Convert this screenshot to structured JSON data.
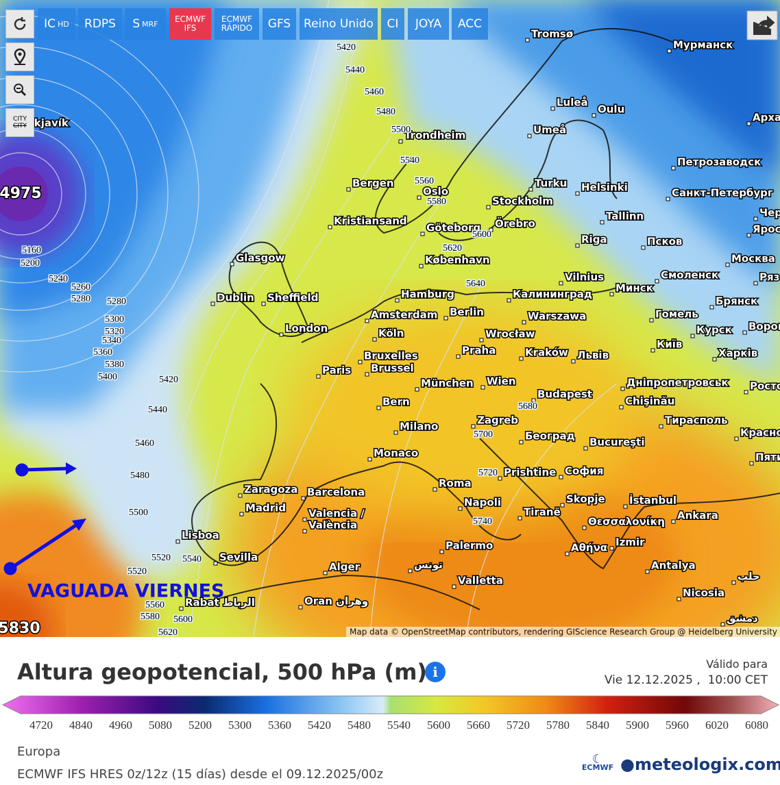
{
  "toolbar": {
    "models": [
      [
        "IC",
        "HD"
      ],
      [
        "RDPS"
      ],
      [
        "S",
        "MRF"
      ],
      [
        "ECMWF",
        "IFS"
      ],
      [
        "ECMWF",
        "RÁPIDO"
      ],
      [
        "GFS"
      ],
      [
        "Reino Unido"
      ],
      [
        "CI"
      ],
      [
        "JOYA"
      ],
      [
        "ACC"
      ]
    ],
    "city_toggle": [
      "CITY",
      "CITY"
    ]
  },
  "map": {
    "cities": [
      "Tromsø",
      "Мурманск",
      "Luleå",
      "Oulu",
      "Арха",
      "ykjavík",
      "Umeå",
      "Trondheim",
      "Петрозаводск",
      "Bergen",
      "Oslo",
      "Turku",
      "Helsinki",
      "Санкт-Петербург",
      "Stockholm",
      "Kristiansand",
      "Göteborg",
      "Örebro",
      "Tallinn",
      "Чер",
      "Ярос",
      "Glasgow",
      "Riga",
      "Псков",
      "København",
      "Москва",
      "Vilnius",
      "Смоленск",
      "Ряз",
      "Dublin",
      "Sheffield",
      "Hamburg",
      "Калининград",
      "Минск",
      "Брянск",
      "Amsterdam",
      "Berlin",
      "Warszawa",
      "Гомель",
      "London",
      "Köln",
      "Wrocław",
      "Курск",
      "Ворон",
      "Київ",
      "Bruxelles",
      "Brussel",
      "Paris",
      "Praha",
      "Kraków",
      "Львів",
      "Харків",
      "München",
      "Wien",
      "Дніпропетровськ",
      "Росто",
      "Bern",
      "Budapest",
      "Chişinău",
      "Milano",
      "Zagreb",
      "Тирасполь",
      "Красно",
      "Београд",
      "Bucureşti",
      "Monaco",
      "Пяти",
      "Zaragoza",
      "Barcelona",
      "Prishtine",
      "София",
      "Roma",
      "Madrid",
      "Valencia /",
      "València",
      "Napoli",
      "Skopje",
      "Tiranë",
      "İstanbul",
      "Ankara",
      "Θεσσαλονίκη",
      "Lisboa",
      "Sevilla",
      "Izmir",
      "Palermo",
      "Αθήνα",
      "Alger",
      "تونس",
      "Antalya",
      "Valletta",
      "حلب",
      "Nicosia",
      "Rabat الرباط",
      "Oran وهران",
      "دمشق"
    ],
    "contours": [
      5420,
      5440,
      5460,
      5480,
      5500,
      5540,
      5560,
      5580,
      5600,
      5620,
      5640,
      4975,
      5160,
      5200,
      5240,
      5260,
      5280,
      5280,
      5300,
      5320,
      5340,
      5360,
      5380,
      5400,
      5420,
      5440,
      5460,
      5480,
      5500,
      5520,
      5540,
      5520,
      5560,
      5580,
      5600,
      5620,
      5830,
      5680,
      5700,
      5720,
      5740
    ],
    "annotation": "VAGUADA VIERNES",
    "attribution": "Map data © OpenStreetMap contributors, rendering GIScience Research Group @ Heidelberg University"
  },
  "legend": {
    "title": "Altura geopotencial, 500 hPa (m)",
    "valid_label": "Válido para",
    "valid_time": "Vie 12.12.2025 ,  10:00 CET",
    "ticks": [
      4720,
      4840,
      4960,
      5080,
      5200,
      5300,
      5360,
      5420,
      5480,
      5540,
      5600,
      5660,
      5720,
      5780,
      5840,
      5900,
      5960,
      6020,
      6080
    ],
    "region": "Europa",
    "model_info": "ECMWF IFS HRES 0z/12z (15 días) desde el 09.12.2025/00z",
    "logos": [
      "ECMWF",
      "meteologix.com"
    ]
  }
}
